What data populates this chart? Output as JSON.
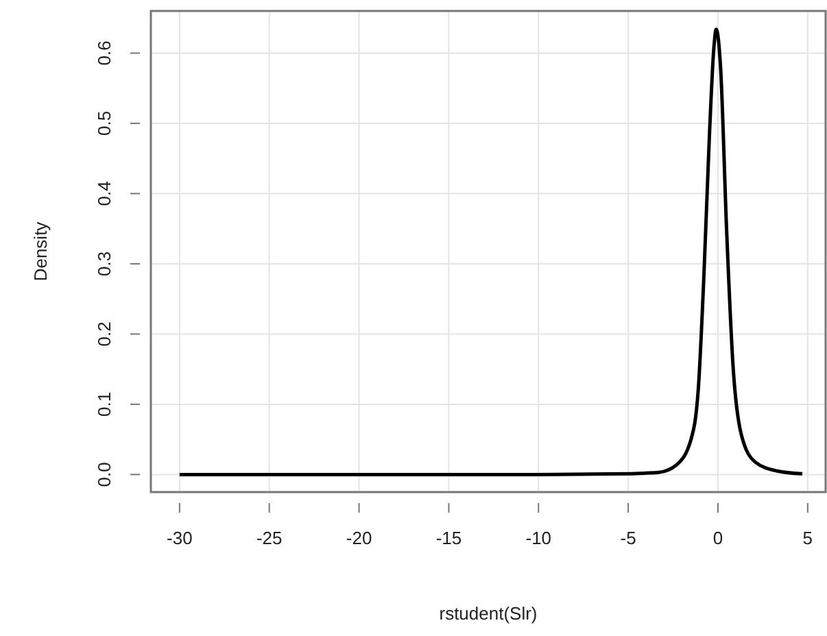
{
  "chart_data": {
    "type": "line",
    "xlabel": "rstudent(Slr)",
    "ylabel": "Density",
    "x": [
      -30,
      -20,
      -10,
      -5,
      -4,
      -3.3,
      -2.3,
      -1.5,
      -1.1,
      -0.78,
      -0.48,
      -0.22,
      -0.1,
      0.15,
      0.48,
      0.84,
      1.3,
      2.06,
      3.3,
      4.7
    ],
    "series": [
      {
        "color": "#000000",
        "values": [
          0,
          0,
          0,
          0.001,
          0.002,
          0.003,
          0.014,
          0.05,
          0.12,
          0.285,
          0.48,
          0.61,
          0.634,
          0.578,
          0.35,
          0.155,
          0.057,
          0.018,
          0.005,
          0.001
        ]
      }
    ],
    "xlim": [
      -31.6,
      6
    ],
    "xticks": [
      -30,
      -25,
      -20,
      -15,
      -10,
      -5,
      0,
      5
    ],
    "ylim": [
      -0.025,
      0.66
    ],
    "yticks": [
      {
        "value": 0,
        "label": "0.0"
      },
      0.1,
      0.2,
      0.3,
      0.4,
      0.5,
      0.6
    ],
    "grid": true,
    "marker": "none",
    "line_style": "solid"
  }
}
